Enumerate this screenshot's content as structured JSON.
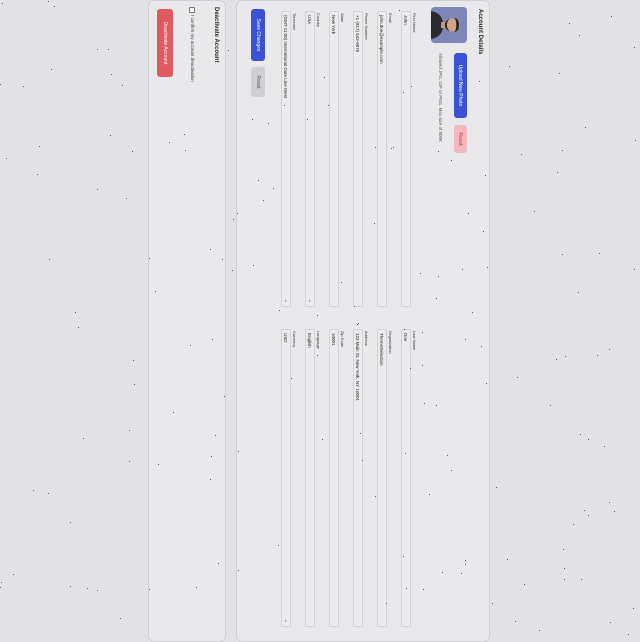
{
  "account": {
    "title": "Account Details",
    "upload_label": "Upload New Photo",
    "reset_label": "Reset",
    "photo_hint": "Allowed JPG, GIF or PNG. Max size of 800K",
    "fields": {
      "first_name": {
        "label": "First Name",
        "value": "John"
      },
      "last_name": {
        "label": "Last Name",
        "value": "Doe"
      },
      "email": {
        "label": "Email",
        "value": "john.doe@example.com"
      },
      "organization": {
        "label": "Organization",
        "value": "ThemeSelection"
      },
      "phone": {
        "label": "Phone Number",
        "value": "+1 (917) 543-9876"
      },
      "address": {
        "label": "Address",
        "value": "123 Main St, New York, NY 10001"
      },
      "state": {
        "label": "State",
        "value": "New York"
      },
      "zip": {
        "label": "Zip Code",
        "value": "10001"
      },
      "country": {
        "label": "Country",
        "value": "USA"
      },
      "language": {
        "label": "Language",
        "value": "English"
      },
      "timezone": {
        "label": "Timezone",
        "value": "(GMT-11:00) International Date Line West"
      },
      "currency": {
        "label": "Currency",
        "value": "USD"
      }
    },
    "save_label": "Save Changes",
    "form_reset_label": "Reset"
  },
  "deactivate": {
    "title": "Deactivate Account",
    "confirm_label": "I confirm my account deactivation",
    "button_label": "Deactivate Account"
  },
  "colors": {
    "primary": "#3b52d6",
    "danger": "#e05a5f",
    "reset_red": "#f2b8bd",
    "background": "#e2e2e4"
  }
}
